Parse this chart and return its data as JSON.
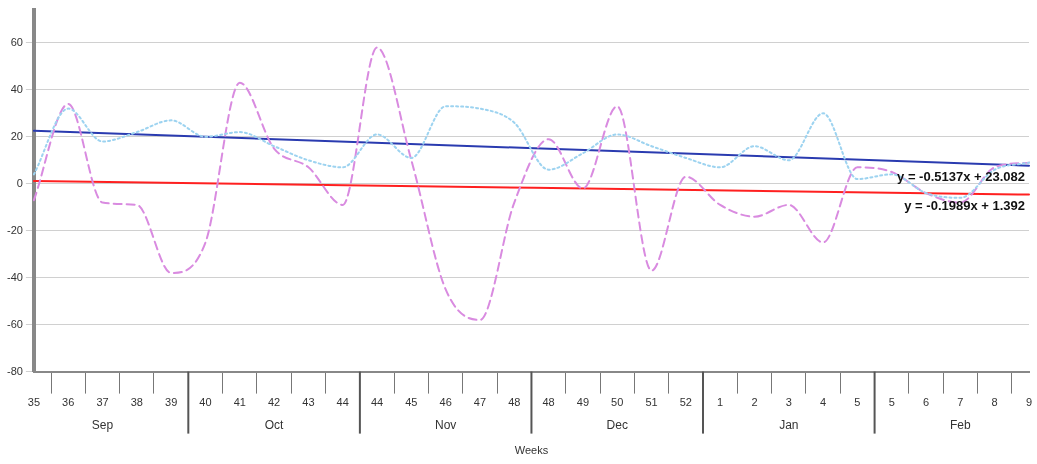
{
  "chart_data": {
    "type": "line",
    "xlabel": "Weeks",
    "categories": [
      "35",
      "36",
      "37",
      "38",
      "39",
      "40",
      "41",
      "42",
      "43",
      "44",
      "44",
      "45",
      "46",
      "47",
      "48",
      "48",
      "49",
      "50",
      "51",
      "52",
      "1",
      "2",
      "3",
      "4",
      "5",
      "5",
      "6",
      "7",
      "8",
      "9"
    ],
    "ylim": [
      -80,
      74
    ],
    "yticks": [
      -80,
      -60,
      -40,
      -20,
      0,
      20,
      40,
      60
    ],
    "grid": "y",
    "legend": false,
    "marker": "none",
    "series": [
      {
        "color": "#9dd3f0",
        "line_style": "dotted",
        "values": [
          4,
          32,
          18,
          22,
          27,
          20,
          22,
          16,
          10,
          7,
          21,
          11,
          33,
          32,
          26,
          6,
          13,
          21,
          16,
          11,
          7,
          16,
          10,
          30,
          2,
          4,
          -4,
          -6,
          6,
          9
        ]
      },
      {
        "color": "#d98be0",
        "line_style": "dashed",
        "values": [
          -7,
          34,
          -8,
          -9,
          -38,
          -25,
          43,
          15,
          7,
          -9,
          58,
          10,
          -45,
          -58,
          -8,
          19,
          -2,
          33,
          -37,
          3,
          -9,
          -14,
          -9,
          -25,
          7,
          5,
          -4,
          -8,
          7,
          9
        ]
      },
      {
        "color": "#2a3bb0",
        "line_style": "solid",
        "values": [
          22.6,
          null,
          null,
          null,
          null,
          null,
          null,
          null,
          null,
          null,
          null,
          null,
          null,
          null,
          null,
          null,
          null,
          null,
          null,
          null,
          null,
          null,
          null,
          null,
          null,
          null,
          null,
          null,
          null,
          7.7
        ]
      },
      {
        "color": "#ff2020",
        "line_style": "solid",
        "values": [
          1.2,
          null,
          null,
          null,
          null,
          null,
          null,
          null,
          null,
          null,
          null,
          null,
          null,
          null,
          null,
          null,
          null,
          null,
          null,
          null,
          null,
          null,
          null,
          null,
          null,
          null,
          null,
          null,
          null,
          -4.6
        ]
      }
    ],
    "annotations": [
      "Sep",
      "Oct",
      "Nov",
      "Dec",
      "Jan",
      "Feb",
      "y = -0.5137x + 23.082",
      "y = -0.1989x + 1.392"
    ]
  }
}
